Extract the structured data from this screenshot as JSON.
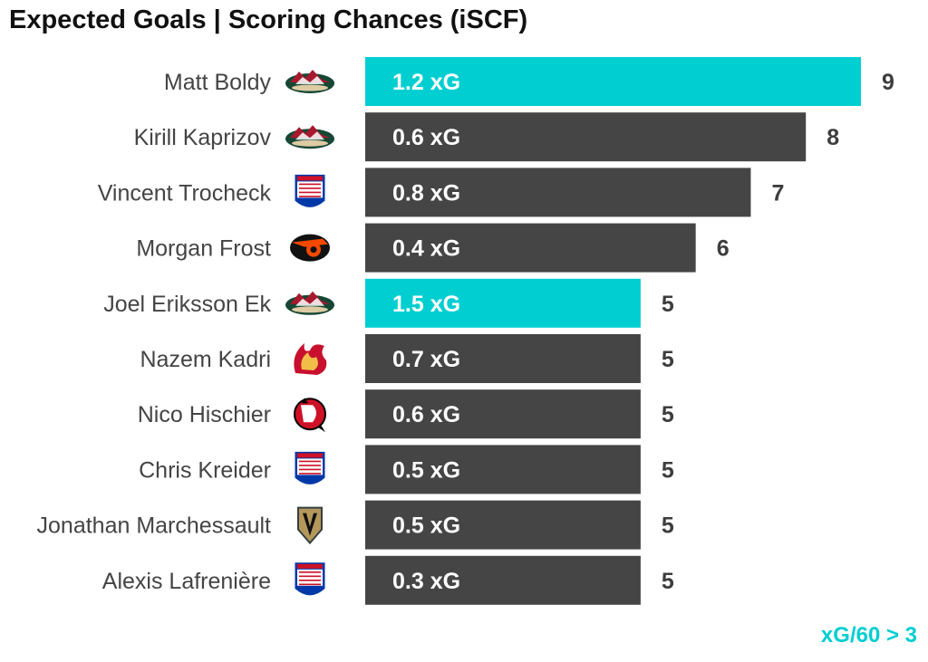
{
  "chart_data": {
    "type": "bar",
    "orientation": "horizontal",
    "title": "Expected Goals | Scoring Chances (iSCF)",
    "categories": [
      "Matt Boldy",
      "Kirill Kaprizov",
      "Vincent Trocheck",
      "Morgan Frost",
      "Joel Eriksson Ek",
      "Nazem Kadri",
      "Nico Hischier",
      "Chris Kreider",
      "Jonathan Marchessault",
      "Alexis Lafrenière"
    ],
    "teams": [
      "minnesota-wild",
      "minnesota-wild",
      "new-york-rangers",
      "philadelphia-flyers",
      "minnesota-wild",
      "calgary-flames",
      "new-jersey-devils",
      "new-york-rangers",
      "vegas-golden-knights",
      "new-york-rangers"
    ],
    "values": [
      9,
      8,
      7,
      6,
      5,
      5,
      5,
      5,
      5,
      5
    ],
    "bar_labels": [
      "1.2 xG",
      "0.6 xG",
      "0.8 xG",
      "0.4 xG",
      "1.5 xG",
      "0.7 xG",
      "0.6 xG",
      "0.5 xG",
      "0.5 xG",
      "0.3 xG"
    ],
    "highlighted": [
      true,
      false,
      false,
      false,
      true,
      false,
      false,
      false,
      false,
      false
    ],
    "xlim": [
      0,
      9
    ],
    "grid": false,
    "legend_note": "xG/60 > 3",
    "colors": {
      "highlight": "#00CED1",
      "default": "#454545",
      "label_text": "#ffffff",
      "value_text": "#3d3d3d",
      "name_text": "#444444"
    }
  }
}
